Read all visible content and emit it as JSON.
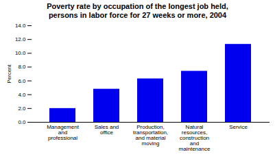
{
  "chart_data": {
    "type": "bar",
    "title": "Poverty rate by occupation of the longest job held,\npersons in labor force for 27 weeks or more, 2004",
    "categories": [
      "Management\nand\nprofessional",
      "Sales and\noffice",
      "Production,\ntransportation,\nand material\nmoving",
      "Natural\nresources,\nconstruction\nand\nmaintenance",
      "Service"
    ],
    "values": [
      2.0,
      4.8,
      6.3,
      7.4,
      11.3
    ],
    "color": "#0000ee",
    "ylabel": "Percent",
    "ylim": [
      0,
      14.0
    ],
    "yticks": [
      {
        "value": 0.0,
        "label": "0.0"
      },
      {
        "value": 2.0,
        "label": "2.0"
      },
      {
        "value": 4.0,
        "label": "4.0"
      },
      {
        "value": 6.0,
        "label": "6.0"
      },
      {
        "value": 8.0,
        "label": "8.0"
      },
      {
        "value": 10.0,
        "label": "10.0"
      },
      {
        "value": 12.0,
        "label": "12.0"
      },
      {
        "value": 14.0,
        "label": "14.0"
      }
    ],
    "grid": false
  }
}
